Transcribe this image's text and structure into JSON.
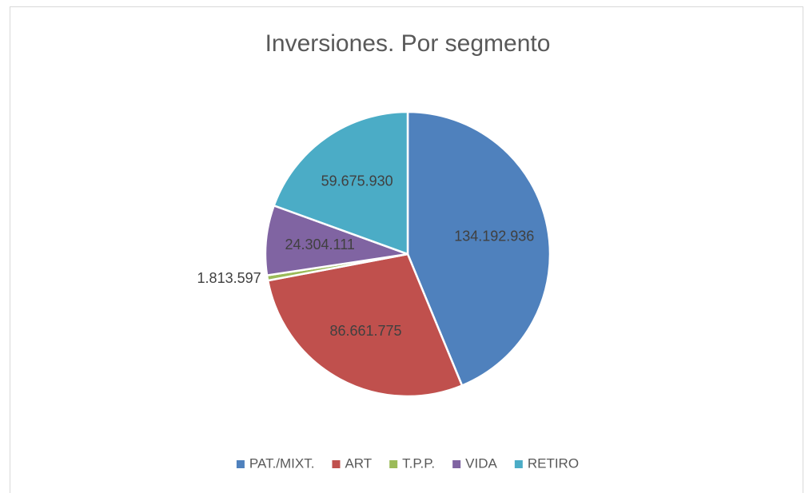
{
  "chart_data": {
    "type": "pie",
    "title": "Inversiones. Por segmento",
    "categories": [
      "PAT./MIXT.",
      "ART",
      "T.P.P.",
      "VIDA",
      "RETIRO"
    ],
    "values": [
      134192936,
      86661775,
      1813597,
      24304111,
      59675930
    ],
    "value_labels": [
      "134.192.936",
      "86.661.775",
      "1.813.597",
      "24.304.111",
      "59.675.930"
    ],
    "colors": [
      "#4f81bd",
      "#c0504d",
      "#9bbb59",
      "#8064a2",
      "#4bacc6"
    ],
    "legend": "bottom"
  }
}
